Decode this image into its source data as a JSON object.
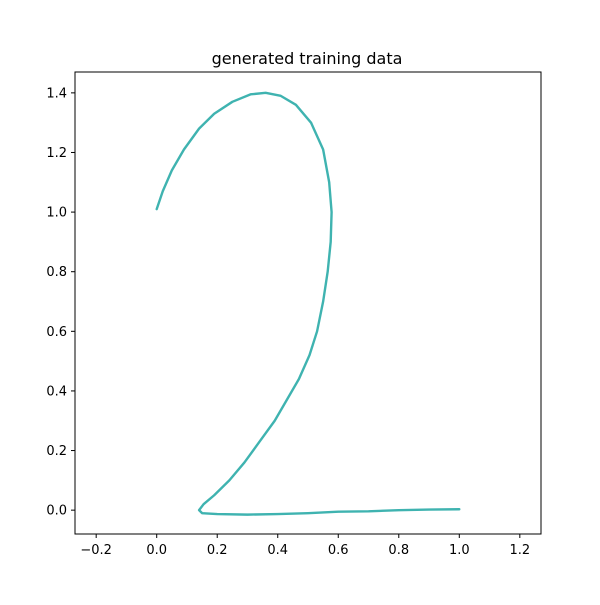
{
  "chart_data": {
    "type": "line",
    "title": "generated training data",
    "xlabel": "",
    "ylabel": "",
    "xlim": [
      -0.27,
      1.27
    ],
    "ylim": [
      -0.08,
      1.47
    ],
    "xticks": [
      -0.2,
      0.0,
      0.2,
      0.4,
      0.6,
      0.8,
      1.0,
      1.2
    ],
    "xtick_labels": [
      "−0.2",
      "0.0",
      "0.2",
      "0.4",
      "0.6",
      "0.8",
      "1.0",
      "1.2"
    ],
    "yticks": [
      0.0,
      0.2,
      0.4,
      0.6,
      0.8,
      1.0,
      1.2,
      1.4
    ],
    "ytick_labels": [
      "0.0",
      "0.2",
      "0.4",
      "0.6",
      "0.8",
      "1.0",
      "1.2",
      "1.4"
    ],
    "grid": false,
    "series": [
      {
        "color": "#3fb3b0",
        "points": [
          [
            0.0,
            1.01
          ],
          [
            0.02,
            1.07
          ],
          [
            0.05,
            1.14
          ],
          [
            0.09,
            1.21
          ],
          [
            0.14,
            1.28
          ],
          [
            0.19,
            1.33
          ],
          [
            0.25,
            1.37
          ],
          [
            0.31,
            1.395
          ],
          [
            0.36,
            1.4
          ],
          [
            0.41,
            1.39
          ],
          [
            0.46,
            1.36
          ],
          [
            0.51,
            1.3
          ],
          [
            0.55,
            1.21
          ],
          [
            0.57,
            1.1
          ],
          [
            0.578,
            1.0
          ],
          [
            0.575,
            0.9
          ],
          [
            0.565,
            0.8
          ],
          [
            0.55,
            0.7
          ],
          [
            0.53,
            0.6
          ],
          [
            0.505,
            0.52
          ],
          [
            0.47,
            0.44
          ],
          [
            0.43,
            0.37
          ],
          [
            0.39,
            0.3
          ],
          [
            0.34,
            0.23
          ],
          [
            0.29,
            0.16
          ],
          [
            0.24,
            0.1
          ],
          [
            0.19,
            0.05
          ],
          [
            0.155,
            0.02
          ],
          [
            0.14,
            0.0
          ],
          [
            0.15,
            -0.01
          ],
          [
            0.2,
            -0.013
          ],
          [
            0.3,
            -0.015
          ],
          [
            0.4,
            -0.013
          ],
          [
            0.5,
            -0.01
          ],
          [
            0.6,
            -0.005
          ],
          [
            0.7,
            -0.004
          ],
          [
            0.8,
            0.0
          ],
          [
            0.9,
            0.002
          ],
          [
            1.0,
            0.003
          ]
        ]
      }
    ]
  }
}
